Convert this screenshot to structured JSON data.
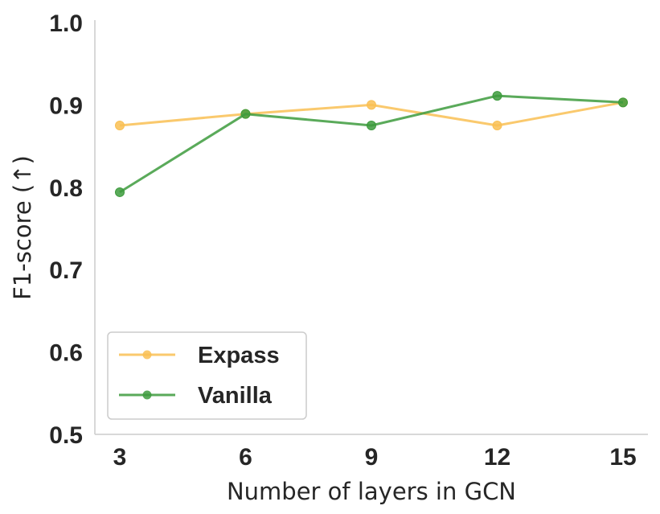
{
  "chart_data": {
    "type": "line",
    "xlabel": "Number of layers in GCN",
    "ylabel": "F1-score (↑)",
    "x": [
      3,
      6,
      9,
      12,
      15
    ],
    "x_ticks": [
      "3",
      "6",
      "9",
      "12",
      "15"
    ],
    "y_ticks": [
      "0.5",
      "0.6",
      "0.7",
      "0.8",
      "0.9",
      "1.0"
    ],
    "ylim": [
      0.5,
      1.0
    ],
    "grid": false,
    "legend_position": "lower-left",
    "series": [
      {
        "name": "Expass",
        "color": "#f9c054",
        "values": [
          0.875,
          0.889,
          0.9,
          0.875,
          0.903
        ]
      },
      {
        "name": "Vanilla",
        "color": "#3d9b3d",
        "values": [
          0.794,
          0.889,
          0.875,
          0.911,
          0.903
        ]
      }
    ]
  }
}
